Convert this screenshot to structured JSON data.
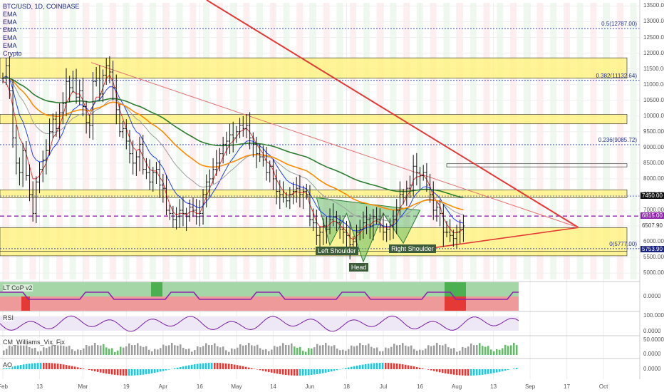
{
  "chart_data": {
    "type": "candlestick",
    "symbol_title": "BTC/USD, 1D, COINBASE",
    "indicators_legend": [
      "EMA",
      "EMA",
      "EMA",
      "EMA",
      "EMA",
      "Crypto"
    ],
    "y_axis": {
      "min": 4800,
      "max": 13600,
      "ticks": [
        13500,
        13000,
        12500,
        12000,
        11500,
        11000,
        10500,
        10000,
        9500,
        9000,
        8500,
        8000,
        7500,
        7000,
        6500,
        6000,
        5500,
        5000
      ],
      "tick_labels": [
        "13500.00",
        "13000.00",
        "12500.00",
        "12000.00",
        "11500.00",
        "11000.00",
        "10500.00",
        "10000.00",
        "9500.00",
        "9000.00",
        "8500.00",
        "8000.00",
        "7500.00",
        "7000.00",
        "6500.00",
        "6000.00",
        "5500.00",
        "5000.00"
      ]
    },
    "x_axis": {
      "tick_labels": [
        "Feb",
        "13",
        "Mar",
        "19",
        "Apr",
        "16",
        "May",
        "14",
        "Jun",
        "18",
        "Jul",
        "16",
        "Aug",
        "13",
        "Sep",
        "17",
        "Oct"
      ],
      "tick_x_index": [
        0,
        11,
        24,
        37,
        48,
        59,
        70,
        81,
        92,
        103,
        114,
        125,
        136,
        147,
        158,
        169,
        180
      ]
    },
    "fib_levels": [
      {
        "label": "0.5(12787.00)",
        "value": 12787
      },
      {
        "label": "0.382(11132.64)",
        "value": 11132.64
      },
      {
        "label": "0.236(9085.72)",
        "value": 9085.72
      },
      {
        "label": "0(5777.00)",
        "value": 5777
      }
    ],
    "price_tags": [
      {
        "label": "7450.00",
        "value": 7450,
        "color": "#ffffff",
        "bg": "#111111"
      },
      {
        "label": "6815.00",
        "value": 6815,
        "color": "#ffffff",
        "bg": "#8e24aa"
      },
      {
        "label": "6507.90",
        "value": 6507.9,
        "color": "#333333",
        "bg": "#ffffff"
      },
      {
        "label": "5753.90",
        "value": 5753.9,
        "color": "#ffffff",
        "bg": "#1a237e"
      }
    ],
    "zones": [
      {
        "low": 11200,
        "high": 11850
      },
      {
        "low": 9750,
        "high": 10050
      },
      {
        "low": 7400,
        "high": 7650
      },
      {
        "low": 5700,
        "high": 6450
      },
      {
        "low": 5550,
        "high": 5700
      }
    ],
    "pattern_labels": [
      {
        "label": "Left Shoulder",
        "idx": 98,
        "value": 5890
      },
      {
        "label": "Head",
        "idx": 108,
        "value": 5360
      },
      {
        "label": "Right Shoulder",
        "idx": 120,
        "value": 5950
      }
    ],
    "candles_close": [
      11200,
      11600,
      10800,
      9300,
      8500,
      8200,
      8900,
      8100,
      7500,
      6900,
      7900,
      8300,
      8600,
      8900,
      9500,
      9900,
      9600,
      10100,
      10400,
      11100,
      10900,
      11200,
      10600,
      10800,
      10300,
      9800,
      9700,
      11100,
      11200,
      10700,
      11300,
      11600,
      11400,
      10900,
      10200,
      9500,
      9600,
      9200,
      8800,
      8500,
      8700,
      9100,
      8300,
      8200,
      7900,
      8200,
      8300,
      7800,
      7700,
      7000,
      6900,
      6700,
      6800,
      7000,
      6900,
      6800,
      7100,
      7000,
      6800,
      6900,
      7500,
      7900,
      8000,
      8300,
      8500,
      8800,
      9100,
      9200,
      9400,
      9300,
      9500,
      9700,
      9600,
      9700,
      9300,
      9100,
      8800,
      8700,
      8600,
      8200,
      8400,
      8000,
      7600,
      7500,
      7400,
      7300,
      7500,
      7600,
      7700,
      7500,
      7600,
      7500,
      6700,
      6600,
      6200,
      6300,
      6500,
      6400,
      6700,
      6800,
      6600,
      6400,
      6300,
      6200,
      5900,
      6000,
      6300,
      6400,
      6600,
      6700,
      6500,
      6800,
      6700,
      6500,
      6300,
      6400,
      6500,
      6700,
      7000,
      7500,
      7400,
      7700,
      7800,
      8400,
      8200,
      8100,
      8200,
      7800,
      7500,
      7000,
      7100,
      6900,
      6300,
      6300,
      6200,
      6100,
      6300,
      6400,
      6500
    ],
    "ema_fast": [
      11100,
      11050,
      10800,
      10300,
      9800,
      9300,
      9100,
      8800,
      8400,
      8000,
      8000,
      8100,
      8300,
      8500,
      8900,
      9300,
      9450,
      9700,
      10000,
      10400,
      10600,
      10800,
      10700,
      10700,
      10500,
      10200,
      10000,
      10300,
      10600,
      10600,
      10900,
      11200,
      11300,
      11100,
      10700,
      10200,
      9900,
      9600,
      9300,
      9000,
      8900,
      8950,
      8700,
      8500,
      8300,
      8250,
      8250,
      8050,
      7900,
      7500,
      7200,
      6950,
      6850,
      6900,
      6900,
      6850,
      6950,
      6980,
      6900,
      6900,
      7150,
      7450,
      7700,
      7950,
      8200,
      8450,
      8700,
      8900,
      9100,
      9200,
      9330,
      9500,
      9550,
      9610,
      9480,
      9320,
      9100,
      8950,
      8800,
      8550,
      8480,
      8280,
      7980,
      7780,
      7620,
      7480,
      7490,
      7530,
      7600,
      7560,
      7570,
      7540,
      7180,
      6930,
      6620,
      6480,
      6490,
      6460,
      6560,
      6660,
      6630,
      6530,
      6430,
      6330,
      6130,
      6070,
      6170,
      6270,
      6420,
      6540,
      6520,
      6640,
      6670,
      6600,
      6470,
      6440,
      6470,
      6570,
      6760,
      7080,
      7220,
      7440,
      7600,
      7960,
      8060,
      8080,
      8130,
      7980,
      7770,
      7420,
      7290,
      7130,
      6760,
      6560,
      6410,
      6280,
      6290,
      6330,
      6400
    ],
    "sub_panels": [
      {
        "label": "LT CoP v2",
        "ticks": [
          "0.0000"
        ]
      },
      {
        "label": "RSI",
        "ticks": [
          "100.0000",
          "0.0000"
        ]
      },
      {
        "label": "CM_Williams_Vix_Fix",
        "ticks": [
          "50.0000",
          "0.0000"
        ]
      },
      {
        "label": "AO",
        "ticks": [
          "0.0000"
        ]
      }
    ]
  }
}
